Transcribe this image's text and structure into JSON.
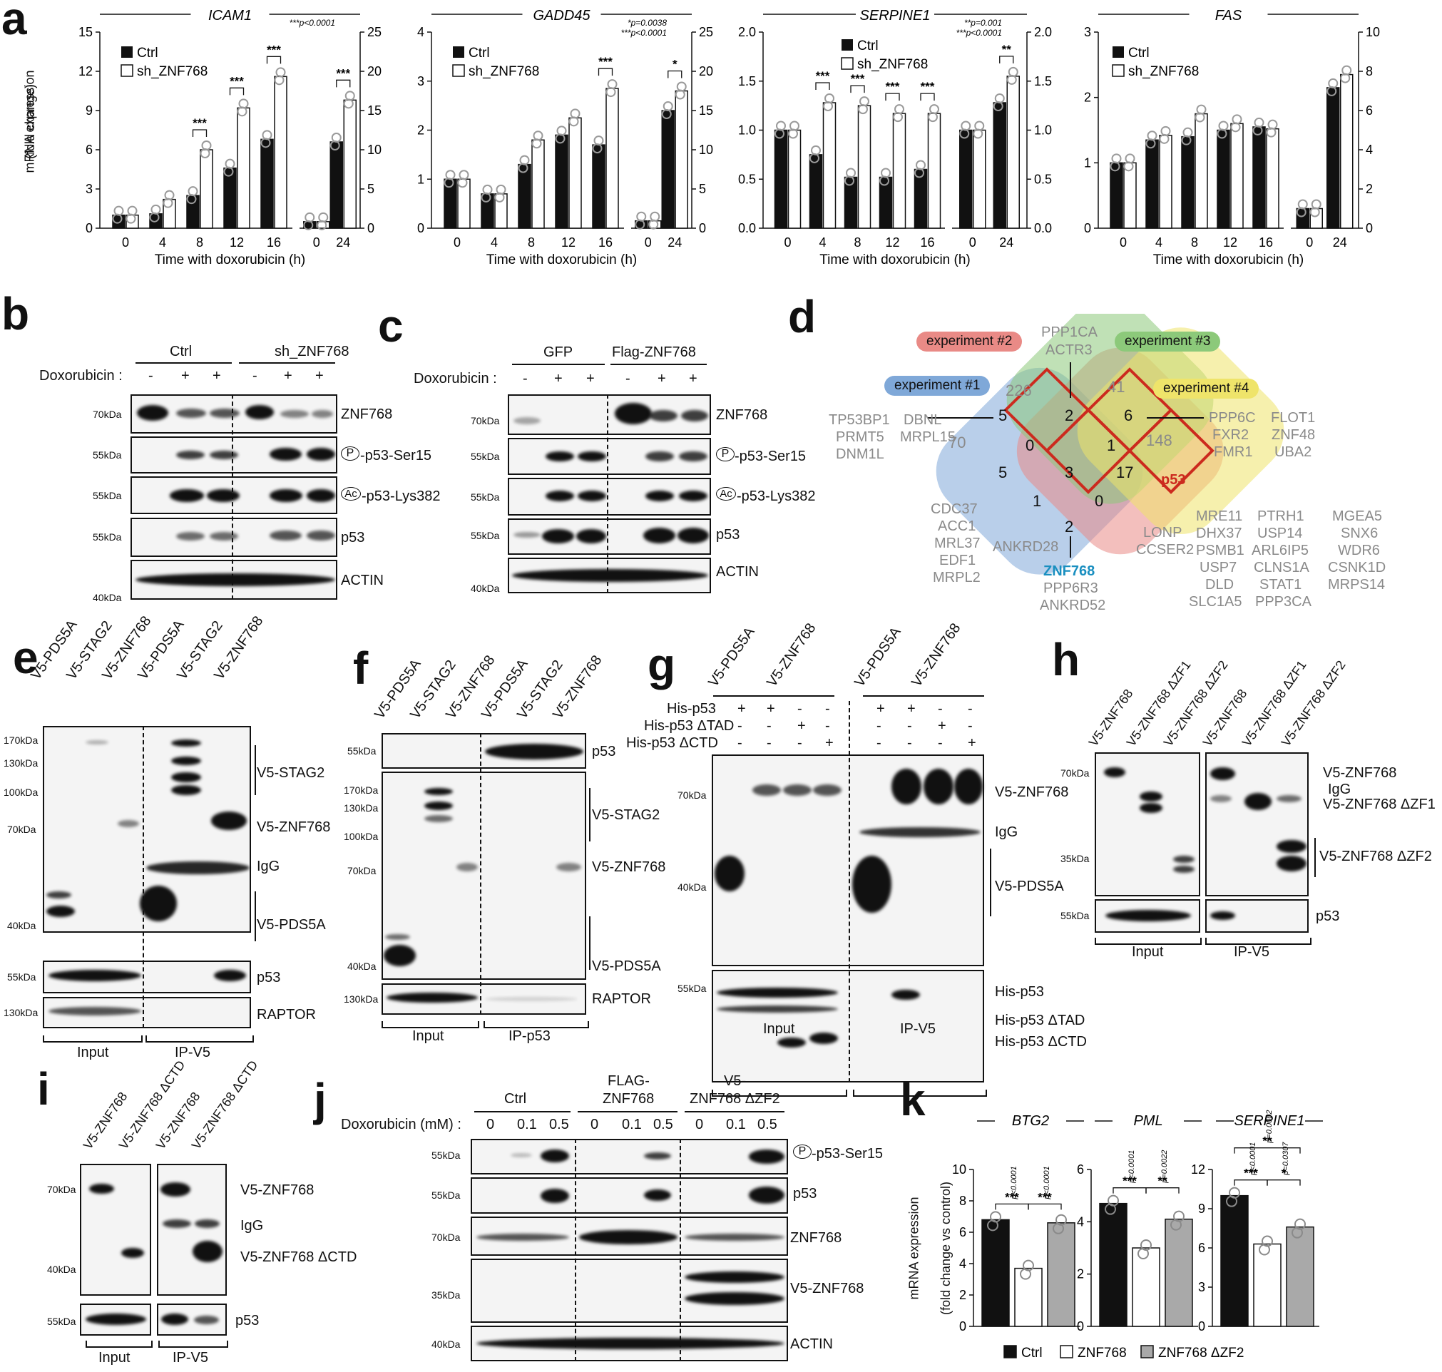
{
  "panels": {
    "a": "a",
    "b": "b",
    "c": "c",
    "d": "d",
    "e": "e",
    "f": "f",
    "g": "g",
    "h": "h",
    "i": "i",
    "j": "j",
    "k": "k"
  },
  "panel_a": {
    "ylabel_1": "mRNA expression",
    "ylabel_2": "(fold change)",
    "xlabel": "Time with doxorubicin (h)",
    "legend": [
      "Ctrl",
      "sh_ZNF768"
    ],
    "colors": {
      "ctrl": "#111111",
      "sh": "#ffffff",
      "dot": "#9a9a9a"
    }
  },
  "chart_data": [
    {
      "type": "bar",
      "title": "ICAM1",
      "categories": [
        "0",
        "4",
        "8",
        "12",
        "16",
        "0",
        "24"
      ],
      "series": [
        {
          "name": "Ctrl",
          "values": [
            1.0,
            1.1,
            2.5,
            4.6,
            6.8,
            0.5,
            6.6
          ]
        },
        {
          "name": "sh_ZNF768",
          "values": [
            1.0,
            2.2,
            6.0,
            9.2,
            11.6,
            0.5,
            9.8
          ]
        }
      ],
      "ylim": [
        0,
        15
      ],
      "yticks": [
        "0",
        "3",
        "6",
        "9",
        "12",
        "15"
      ],
      "ylim_right": [
        0,
        25
      ],
      "yticks_right": [
        "0",
        "5",
        "10",
        "15",
        "20",
        "25"
      ],
      "sig": [
        "",
        "",
        "***",
        "***",
        "***",
        "",
        "***"
      ],
      "pnote": [
        "***p<0.0001"
      ]
    },
    {
      "type": "bar",
      "title": "GADD45",
      "categories": [
        "0",
        "4",
        "8",
        "12",
        "16",
        "0",
        "24"
      ],
      "series": [
        {
          "name": "Ctrl",
          "values": [
            1.0,
            0.7,
            1.3,
            1.9,
            1.7,
            0.15,
            2.4
          ]
        },
        {
          "name": "sh_ZNF768",
          "values": [
            1.0,
            0.7,
            1.8,
            2.25,
            2.85,
            0.15,
            2.8
          ]
        }
      ],
      "ylim": [
        0,
        4
      ],
      "yticks": [
        "0",
        "1",
        "2",
        "3",
        "4"
      ],
      "ylim_right": [
        0,
        25
      ],
      "yticks_right": [
        "0",
        "5",
        "10",
        "15",
        "20",
        "25"
      ],
      "sig": [
        "",
        "",
        "",
        "",
        "***",
        "",
        "*"
      ],
      "pnote": [
        "*p=0.0038",
        "***p<0.0001"
      ]
    },
    {
      "type": "bar",
      "title": "SERPINE1",
      "categories": [
        "0",
        "4",
        "8",
        "12",
        "16",
        "0",
        "24"
      ],
      "series": [
        {
          "name": "Ctrl",
          "values": [
            1.0,
            0.75,
            0.52,
            0.52,
            0.6,
            1.0,
            1.28
          ]
        },
        {
          "name": "sh_ZNF768",
          "values": [
            1.0,
            1.28,
            1.25,
            1.17,
            1.17,
            1.0,
            1.55
          ]
        }
      ],
      "ylim": [
        0,
        2.0
      ],
      "yticks": [
        "0.0",
        "0.5",
        "1.0",
        "1.5",
        "2.0"
      ],
      "ylim_right": [
        0,
        2.0
      ],
      "yticks_right": [
        "0.0",
        "0.5",
        "1.0",
        "1.5",
        "2.0"
      ],
      "sig": [
        "",
        "***",
        "***",
        "***",
        "***",
        "",
        "**"
      ],
      "pnote": [
        "**p=0.001",
        "***p<0.0001"
      ]
    },
    {
      "type": "bar",
      "title": "FAS",
      "categories": [
        "0",
        "4",
        "8",
        "12",
        "16",
        "0",
        "24"
      ],
      "series": [
        {
          "name": "Ctrl",
          "values": [
            1.0,
            1.35,
            1.4,
            1.5,
            1.55,
            0.3,
            2.15
          ]
        },
        {
          "name": "sh_ZNF768",
          "values": [
            1.0,
            1.42,
            1.75,
            1.6,
            1.52,
            0.3,
            2.35
          ]
        }
      ],
      "ylim": [
        0,
        3
      ],
      "yticks": [
        "0",
        "1",
        "2",
        "3"
      ],
      "ylim_right": [
        0,
        10
      ],
      "yticks_right": [
        "0",
        "2",
        "4",
        "6",
        "8",
        "10"
      ],
      "sig": [
        "",
        "",
        "",
        "",
        "",
        "",
        ""
      ],
      "pnote": []
    },
    {
      "type": "bar",
      "title": "BTG2",
      "categories": [
        "Ctrl",
        "ZNF768",
        "ZNF768 ΔZF2"
      ],
      "series": [
        {
          "name": "expression",
          "values": [
            6.8,
            3.7,
            6.6
          ]
        }
      ],
      "ylim": [
        0,
        10
      ],
      "yticks": [
        "0",
        "2",
        "4",
        "6",
        "8",
        "10"
      ],
      "sig": [
        "***",
        "***"
      ],
      "pvals": [
        "p<0.0001",
        "p<0.0001"
      ]
    },
    {
      "type": "bar",
      "title": "PML",
      "categories": [
        "Ctrl",
        "ZNF768",
        "ZNF768 ΔZF2"
      ],
      "series": [
        {
          "name": "expression",
          "values": [
            4.7,
            3.0,
            4.1
          ]
        }
      ],
      "ylim": [
        0,
        6
      ],
      "yticks": [
        "0",
        "2",
        "4",
        "6"
      ],
      "sig": [
        "***",
        "**"
      ],
      "pvals": [
        "p<0.0001",
        "p=0.0022"
      ]
    },
    {
      "type": "bar",
      "title": "SERPINE1",
      "categories": [
        "Ctrl",
        "ZNF768",
        "ZNF768 ΔZF2"
      ],
      "series": [
        {
          "name": "expression",
          "values": [
            10.0,
            6.3,
            7.6
          ]
        }
      ],
      "ylim": [
        0,
        12
      ],
      "yticks": [
        "0",
        "3",
        "6",
        "9",
        "12"
      ],
      "sig": [
        "***",
        "*",
        "**"
      ],
      "pvals": [
        "p<0.0001",
        "p=0.0307",
        "p=0.0002"
      ]
    }
  ],
  "panel_b": {
    "groups": [
      "Ctrl",
      "sh_ZNF768"
    ],
    "treat_label": "Doxorubicin :",
    "treat": [
      "-",
      "+",
      "+",
      "-",
      "+",
      "+"
    ],
    "rows": [
      "ZNF768",
      "-p53-Ser15",
      "-p53-Lys382",
      "p53",
      "ACTIN"
    ],
    "kda": [
      "70kDa",
      "55kDa",
      "55kDa",
      "55kDa",
      "40kDa"
    ],
    "ptag": "P",
    "actag": "Ac"
  },
  "panel_c": {
    "groups": [
      "GFP",
      "Flag-ZNF768"
    ],
    "treat_label": "Doxorubicin :",
    "treat": [
      "-",
      "+",
      "+",
      "-",
      "+",
      "+"
    ],
    "rows": [
      "ZNF768",
      "-p53-Ser15",
      "-p53-Lys382",
      "p53",
      "ACTIN"
    ],
    "kda": [
      "70kDa",
      "55kDa",
      "55kDa",
      "55kDa",
      "40kDa"
    ]
  },
  "panel_d": {
    "experiments": [
      "experiment #1",
      "experiment #2",
      "experiment #3",
      "experiment #4"
    ],
    "colors": {
      "e1": "#7fa8d8",
      "e2": "#e98a86",
      "e3": "#8cc97a",
      "e4": "#efe46a",
      "highlight": "#cc2a1e",
      "znf": "#1a8fc0"
    },
    "numbers": {
      "n226": "226",
      "n41": "41",
      "n70": "70",
      "n148": "148",
      "n5a": "5",
      "n2": "2",
      "n6": "6",
      "n0a": "0",
      "n1a": "1",
      "n5b": "5",
      "n3": "3",
      "n17": "17",
      "n1b": "1",
      "n0b": "0",
      "n2b": "2"
    },
    "top": [
      "PPP1CA",
      "ACTR3"
    ],
    "left": [
      "TP53BP1",
      "PRMT5",
      "DNM1L"
    ],
    "left2": [
      "DBNL",
      "MRPL15"
    ],
    "right1": [
      "PPP6C",
      "FXR2",
      "FMR1"
    ],
    "right2": [
      "FLOT1",
      "ZNF48",
      "UBA2"
    ],
    "p53": "p53",
    "bl": [
      "CDC37",
      "ACC1",
      "MRL37",
      "EDF1",
      "MRPL2"
    ],
    "ank": "ANKRD28",
    "znf": "ZNF768",
    "znf_rest": [
      "PPP6R3",
      "ANKRD52"
    ],
    "lon": [
      "LONP",
      "CCSER2"
    ],
    "br1": [
      "MRE11",
      "DHX37",
      "PSMB1",
      "USP7",
      "DLD",
      "SLC1A5"
    ],
    "br2": [
      "PTRH1",
      "USP14",
      "ARL6IP5",
      "CLNS1A",
      "STAT1",
      "PPP3CA"
    ],
    "br3": [
      "MGEA5",
      "SNX6",
      "WDR6",
      "CSNK1D",
      "MRPS14"
    ]
  },
  "panel_e": {
    "lanes": [
      "V5-PDS5A",
      "V5-STAG2",
      "V5-ZNF768",
      "V5-PDS5A",
      "V5-STAG2",
      "V5-ZNF768"
    ],
    "kda": [
      "170kDa",
      "130kDa",
      "100kDa",
      "70kDa",
      "40kDa",
      "55kDa",
      "130kDa"
    ],
    "right": [
      "V5-STAG2",
      "V5-ZNF768",
      "IgG",
      "V5-PDS5A",
      "p53",
      "RAPTOR"
    ],
    "bottom": [
      "Input",
      "IP-V5"
    ]
  },
  "panel_f": {
    "lanes": [
      "V5-PDS5A",
      "V5-STAG2",
      "V5-ZNF768",
      "V5-PDS5A",
      "V5-STAG2",
      "V5-ZNF768"
    ],
    "kda": [
      "55kDa",
      "170kDa",
      "130kDa",
      "100kDa",
      "70kDa",
      "40kDa",
      "130kDa"
    ],
    "right": [
      "p53",
      "V5-STAG2",
      "V5-ZNF768",
      "V5-PDS5A",
      "RAPTOR"
    ],
    "bottom": [
      "Input",
      "IP-p53"
    ]
  },
  "panel_g": {
    "lanes": [
      "V5-PDS5A",
      "V5-ZNF768",
      "V5-PDS5A",
      "V5-ZNF768"
    ],
    "rowlabels": [
      "His-p53",
      "His-p53 ΔTAD",
      "His-p53 ΔCTD"
    ],
    "signs": [
      [
        "+",
        "+",
        "-",
        "-",
        "+",
        "+",
        "-",
        "-"
      ],
      [
        "-",
        "-",
        "+",
        "-",
        "-",
        "-",
        "+",
        "-"
      ],
      [
        "-",
        "-",
        "-",
        "+",
        "-",
        "-",
        "-",
        "+"
      ]
    ],
    "kda": [
      "70kDa",
      "40kDa",
      "55kDa"
    ],
    "right": [
      "V5-ZNF768",
      "IgG",
      "V5-PDS5A",
      "His-p53",
      "His-p53 ΔTAD",
      "His-p53 ΔCTD"
    ],
    "bottom": [
      "Input",
      "IP-V5"
    ]
  },
  "panel_h": {
    "lanes": [
      "V5-ZNF768",
      "V5-ZNF768 ΔZF1",
      "V5-ZNF768 ΔZF2",
      "V5-ZNF768",
      "V5-ZNF768 ΔZF1",
      "V5-ZNF768 ΔZF2"
    ],
    "kda": [
      "70kDa",
      "35kDa",
      "55kDa"
    ],
    "right": [
      "V5-ZNF768",
      "IgG",
      "V5-ZNF768 ΔZF1",
      "V5-ZNF768 ΔZF2",
      "p53"
    ],
    "bottom": [
      "Input",
      "IP-V5"
    ]
  },
  "panel_i": {
    "lanes": [
      "V5-ZNF768",
      "V5-ZNF768 ΔCTD",
      "V5-ZNF768",
      "V5-ZNF768 ΔCTD"
    ],
    "kda": [
      "70kDa",
      "40kDa",
      "55kDa"
    ],
    "right": [
      "V5-ZNF768",
      "IgG",
      "V5-ZNF768 ΔCTD",
      "p53"
    ],
    "bottom": [
      "Input",
      "IP-V5"
    ]
  },
  "panel_j": {
    "groups": [
      "Ctrl",
      "FLAG-",
      "ZNF768",
      "V5-",
      "ZNF768 ΔZF2"
    ],
    "treat_label": "Doxorubicin (mM) :",
    "doses": [
      "0",
      "0.1",
      "0.5",
      "0",
      "0.1",
      "0.5",
      "0",
      "0.1",
      "0.5"
    ],
    "kda": [
      "55kDa",
      "55kDa",
      "70kDa",
      "35kDa",
      "40kDa"
    ],
    "rows": [
      "-p53-Ser15",
      "p53",
      "ZNF768",
      "V5-ZNF768",
      "ACTIN"
    ]
  },
  "panel_k": {
    "ylabel_1": "mRNA expression",
    "ylabel_2": "(fold change vs control)",
    "legend": [
      "Ctrl",
      "ZNF768",
      "ZNF768 ΔZF2"
    ],
    "colors": {
      "ctrl": "#111111",
      "znf": "#ffffff",
      "zf2": "#a9a9a9"
    }
  }
}
